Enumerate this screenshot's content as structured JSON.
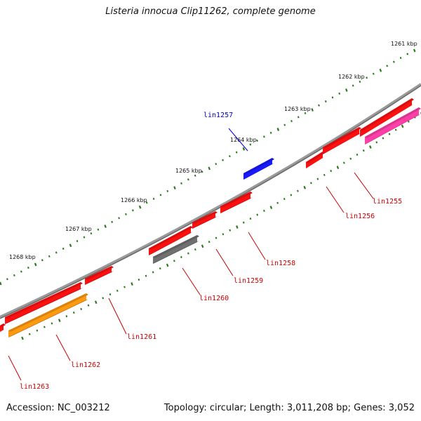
{
  "title": "Listeria innocua Clip11262, complete genome",
  "footer": {
    "accession": "Accession: NC_003212",
    "summary": "Topology: circular; Length: 3,011,208 bp; Genes: 3,052"
  },
  "colors": {
    "backbone": "#8a8a8a",
    "ticks": "#2b7a1e",
    "gene_red": "#ff1010",
    "gene_blue": "#1a1aff",
    "gene_grey": "#707070",
    "gene_orange": "#ff9a10",
    "gene_pink": "#ff3fa8",
    "label_red": "#cc0000",
    "label_blue": "#0000cc"
  },
  "scale_labels": [
    "1261 kbp",
    "1262 kbp",
    "1263 kbp",
    "1264 kbp",
    "1265 kbp",
    "1266 kbp",
    "1267 kbp",
    "1268 kbp"
  ],
  "genes": [
    {
      "label": "lin1255",
      "color": "gene_pink",
      "strand": "minus"
    },
    {
      "label": "lin1256",
      "color": "gene_red",
      "strand": "minus"
    },
    {
      "label": "lin1257",
      "color": "gene_blue",
      "strand": "plus"
    },
    {
      "label": "lin1258",
      "color": "gene_red",
      "strand": "minus"
    },
    {
      "label": "lin1259",
      "color": "gene_red",
      "strand": "minus"
    },
    {
      "label": "lin1260",
      "color": "gene_grey",
      "strand": "minus"
    },
    {
      "label": "lin1261",
      "color": "gene_red",
      "strand": "minus"
    },
    {
      "label": "lin1262",
      "color": "gene_orange",
      "strand": "minus"
    },
    {
      "label": "lin1263",
      "color": "gene_red",
      "strand": "minus"
    }
  ]
}
